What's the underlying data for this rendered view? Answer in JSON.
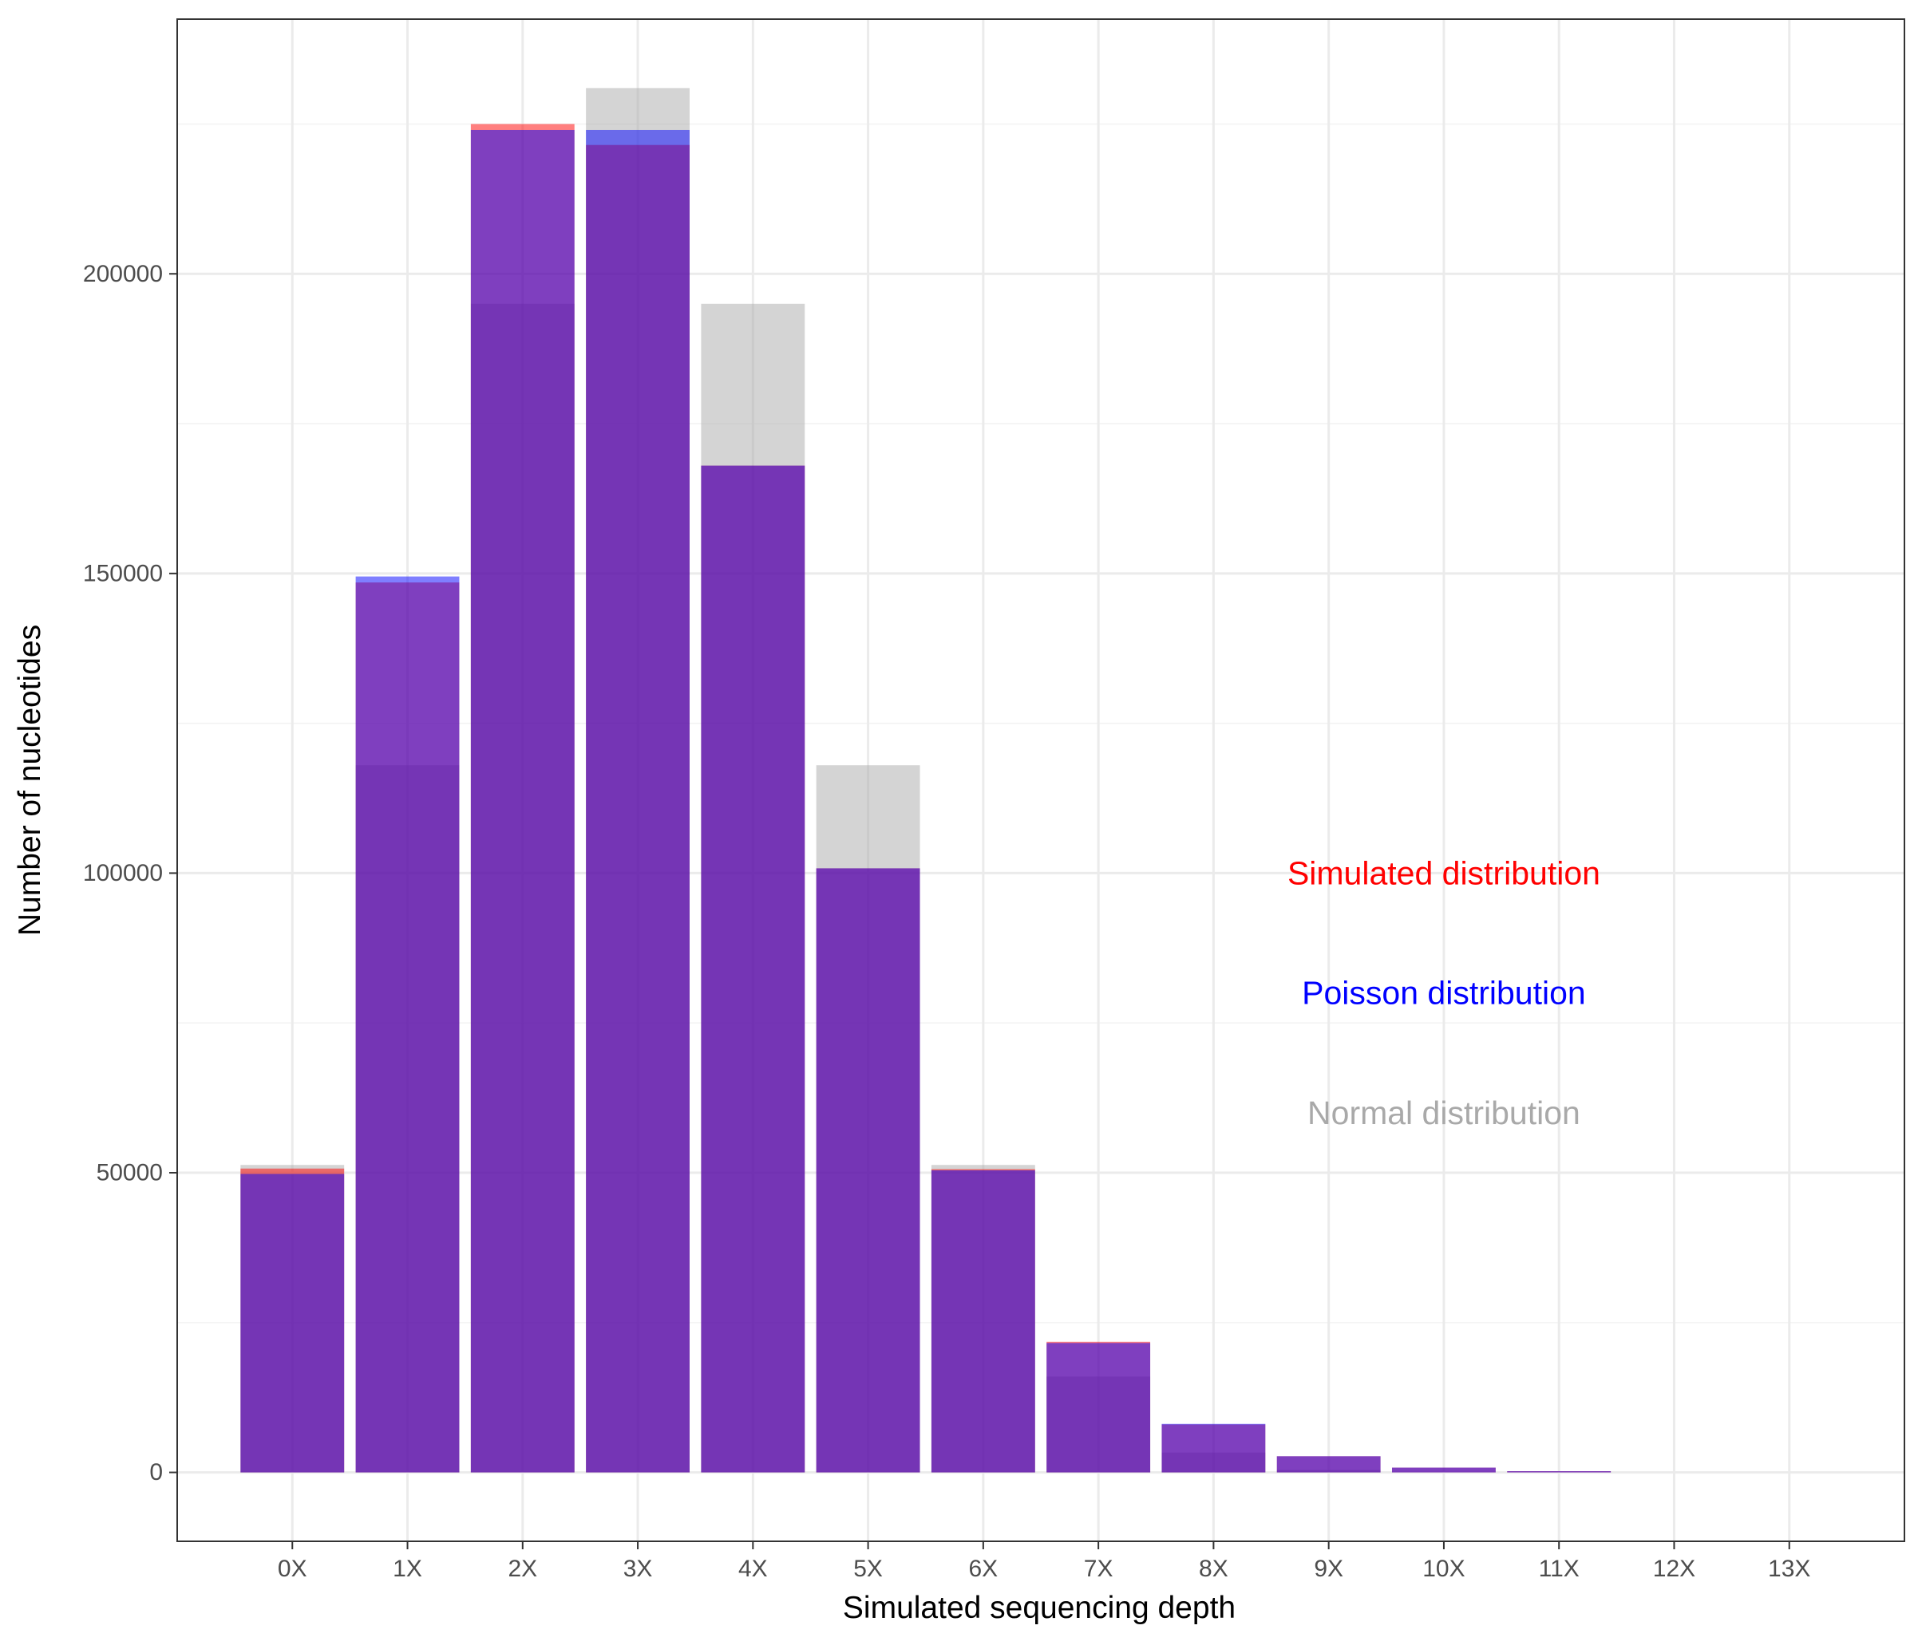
{
  "chart_data": {
    "type": "bar",
    "title": "",
    "xlabel": "Simulated sequencing depth",
    "ylabel": "Number of nucleotides",
    "categories": [
      "0X",
      "1X",
      "2X",
      "3X",
      "4X",
      "5X",
      "6X",
      "7X",
      "8X",
      "9X",
      "10X",
      "11X",
      "12X",
      "13X"
    ],
    "series": [
      {
        "name": "Simulated distribution",
        "color": "#ff0000",
        "values": [
          50700,
          148500,
          225000,
          221500,
          168000,
          100800,
          50600,
          21800,
          8000,
          2700,
          800,
          200,
          0,
          0
        ]
      },
      {
        "name": "Poisson distribution",
        "color": "#0000ff",
        "values": [
          49800,
          149500,
          224000,
          224000,
          168000,
          100800,
          50400,
          21600,
          8100,
          2700,
          800,
          200,
          0,
          0
        ]
      },
      {
        "name": "Normal distribution",
        "color": "#a9a9a9",
        "values": [
          51300,
          118000,
          195000,
          231000,
          195000,
          118000,
          51300,
          16000,
          3300,
          400,
          0,
          0,
          0,
          0
        ]
      }
    ],
    "y_ticks": [
      0,
      50000,
      100000,
      150000,
      200000
    ],
    "y_tick_labels": [
      "0",
      "50000",
      "100000",
      "150000",
      "200000"
    ],
    "ylim": [
      -11500,
      242500
    ],
    "x_range": [
      -1,
      14
    ],
    "grid": true,
    "legend_placement": "inside-right",
    "bar_alpha": 0.5,
    "colors": {
      "panel_border": "#333333",
      "grid_major": "#ebebeb",
      "grid_minor": "#f2f2f2",
      "tick": "#333333"
    }
  }
}
